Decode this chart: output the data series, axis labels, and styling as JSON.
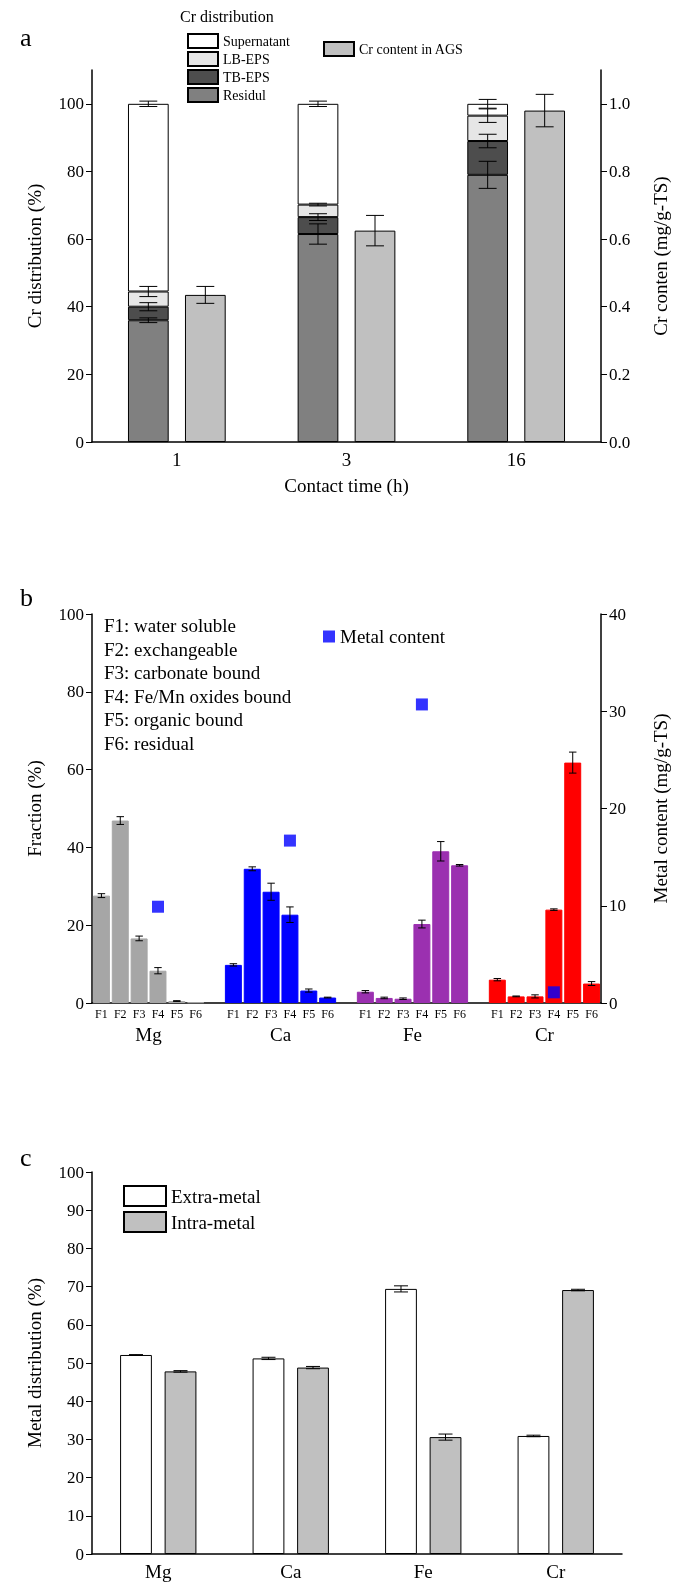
{
  "chart_data": [
    {
      "type": "bar",
      "title": "a",
      "xlabel": "Contact time (h)",
      "ylabel": "Cr distribution (%)",
      "y2label": "Cr conten (mg/g-TS)",
      "legend_title": "Cr distribution",
      "legend": "top",
      "stacked": true,
      "categories": [
        "1",
        "3",
        "16"
      ],
      "series": [
        {
          "name": "Residul",
          "color": "#808080",
          "values": [
            36,
            61.5,
            79
          ],
          "errors": [
            0.7,
            3,
            4
          ]
        },
        {
          "name": "TB-EPS",
          "color": "#4d4d4d",
          "values": [
            4,
            5,
            10
          ],
          "errors": [
            1.2,
            1,
            2
          ]
        },
        {
          "name": "LB-EPS",
          "color": "#e6e6e6",
          "values": [
            4.5,
            3.7,
            7.5
          ],
          "errors": [
            1.5,
            0.4,
            2
          ]
        },
        {
          "name": "Supernatant",
          "color": "#ffffff",
          "values": [
            55.5,
            29.8,
            3.5
          ],
          "errors": [
            0.8,
            0.8,
            1.3
          ]
        },
        {
          "name": "Cr content in AGS",
          "color": "#c0c0c0",
          "axis": "y2",
          "values": [
            0.435,
            0.625,
            0.98
          ],
          "errors": [
            0.025,
            0.045,
            0.048
          ]
        }
      ],
      "ylim": [
        0,
        110
      ],
      "yticks": [
        0,
        20,
        40,
        60,
        80,
        100
      ],
      "y2lim": [
        0,
        1.1
      ],
      "y2ticks": [
        {
          "value": 0,
          "label": "0.0"
        },
        {
          "value": 0.2,
          "label": "0.2"
        },
        {
          "value": 0.4,
          "label": "0.4"
        },
        {
          "value": 0.6,
          "label": "0.6"
        },
        {
          "value": 0.8,
          "label": "0.8"
        },
        {
          "value": 1,
          "label": "1.0"
        }
      ]
    },
    {
      "type": "bar",
      "title": "b",
      "ylabel": "Fraction (%)",
      "y2label": "Metal content (mg/g-TS)",
      "legend": "top",
      "marker": "square",
      "categories": [
        "F1",
        "F2",
        "F3",
        "F4",
        "F5",
        "F6",
        null,
        "F1",
        "F2",
        "F3",
        "F4",
        "F5",
        "F6",
        null,
        "F1",
        "F2",
        "F3",
        "F4",
        "F5",
        "F6",
        null,
        "F1",
        "F2",
        "F3",
        "F4",
        "F5",
        "F6"
      ],
      "series": [
        {
          "name": "Mg",
          "color": "#a6a6a6",
          "values": [
            27.6,
            46.9,
            16.6,
            8.3,
            0.5,
            0.2,
            null,
            null,
            null,
            null,
            null,
            null,
            null,
            null,
            null,
            null,
            null,
            null,
            null,
            null,
            null,
            null,
            null,
            null,
            null,
            null,
            null
          ],
          "errors": [
            0.5,
            1,
            0.6,
            0.8,
            0.1,
            null,
            null,
            null,
            null,
            null,
            null,
            null,
            null,
            null,
            null,
            null,
            null,
            null,
            null,
            null,
            null,
            null,
            null,
            null,
            null,
            null,
            null
          ]
        },
        {
          "name": "Ca",
          "color": "#0000ff",
          "values": [
            null,
            null,
            null,
            null,
            null,
            null,
            null,
            9.8,
            34.5,
            28.6,
            22.7,
            3.2,
            1.4,
            null,
            null,
            null,
            null,
            null,
            null,
            null,
            null,
            null,
            null,
            null,
            null,
            null,
            null
          ],
          "errors": [
            null,
            null,
            null,
            null,
            null,
            null,
            null,
            0.3,
            0.5,
            2.2,
            2,
            0.4,
            0.1,
            null,
            null,
            null,
            null,
            null,
            null,
            null,
            null,
            null,
            null,
            null,
            null,
            null,
            null
          ]
        },
        {
          "name": "Fe",
          "color": "#9b30b0",
          "values": [
            null,
            null,
            null,
            null,
            null,
            null,
            null,
            null,
            null,
            null,
            null,
            null,
            null,
            null,
            2.9,
            1.3,
            1.1,
            20.3,
            39,
            35.4,
            null,
            null,
            null,
            null,
            null,
            null,
            null
          ],
          "errors": [
            null,
            null,
            null,
            null,
            null,
            null,
            null,
            null,
            null,
            null,
            null,
            null,
            null,
            null,
            0.3,
            0.2,
            0.2,
            1,
            2.5,
            0.2,
            null,
            null,
            null,
            null,
            null,
            null,
            null
          ]
        },
        {
          "name": "Cr",
          "color": "#ff0000",
          "values": [
            null,
            null,
            null,
            null,
            null,
            null,
            null,
            null,
            null,
            null,
            null,
            null,
            null,
            null,
            null,
            null,
            null,
            null,
            null,
            null,
            null,
            6,
            1.7,
            1.7,
            24,
            61.8,
            5
          ],
          "errors": [
            null,
            null,
            null,
            null,
            null,
            null,
            null,
            null,
            null,
            null,
            null,
            null,
            null,
            null,
            null,
            null,
            null,
            null,
            null,
            null,
            null,
            0.3,
            0.1,
            0.4,
            0.2,
            2.7,
            0.5
          ]
        },
        {
          "name": "Metal content",
          "type": "scatter",
          "axis": "y2",
          "color": "#0000ff",
          "values": [
            null,
            null,
            null,
            9.9,
            null,
            null,
            null,
            null,
            null,
            null,
            16.7,
            null,
            null,
            null,
            null,
            null,
            null,
            30.7,
            null,
            null,
            null,
            null,
            null,
            null,
            1.1,
            null,
            null
          ]
        }
      ],
      "annotations": [
        "F1: water soluble",
        "F2: exchangeable",
        "F3: carbonate bound",
        "F4: Fe/Mn oxides bound",
        "F5: organic bound",
        "F6: residual"
      ],
      "ylim": [
        0,
        100
      ],
      "yticks": [
        0,
        20,
        40,
        60,
        80,
        100
      ],
      "y2lim": [
        0,
        40
      ],
      "y2ticks": [
        0,
        10,
        20,
        30,
        40
      ]
    },
    {
      "type": "bar",
      "title": "c",
      "ylabel": "Metal distribution (%)",
      "legend": "top left",
      "categories": [
        "Mg",
        "Ca",
        "Fe",
        "Cr"
      ],
      "series": [
        {
          "name": "Extra-metal",
          "color": "#ffffff",
          "values": [
            52.1,
            51.2,
            69.4,
            30.9
          ],
          "errors": [
            0.1,
            0.3,
            0.8,
            0.2
          ]
        },
        {
          "name": "Intra-metal",
          "color": "#c0c0c0",
          "values": [
            47.8,
            48.8,
            30.6,
            69.1
          ],
          "errors": [
            0.2,
            0.3,
            0.8,
            0.2
          ]
        }
      ],
      "ylim": [
        0,
        100
      ],
      "yticks": [
        0,
        10,
        20,
        30,
        40,
        50,
        60,
        70,
        80,
        90,
        100
      ]
    }
  ]
}
